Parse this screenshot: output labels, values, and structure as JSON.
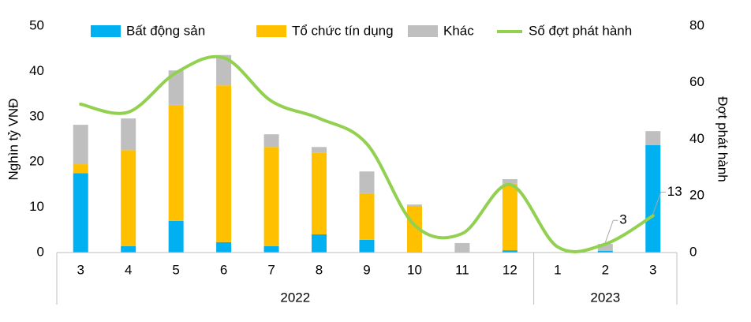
{
  "chart_data": {
    "type": "bar",
    "categories": [
      "3",
      "4",
      "5",
      "6",
      "7",
      "8",
      "9",
      "10",
      "11",
      "12",
      "1",
      "2",
      "3"
    ],
    "x_groups": [
      {
        "label": "2022",
        "span": 10
      },
      {
        "label": "2023",
        "span": 3
      }
    ],
    "y_label": "Nghìn tỷ VNĐ",
    "y2_label": "Đợt phát hành",
    "stacked": true,
    "series": [
      {
        "name": "Bất động sản",
        "color": "#00b0f0",
        "values": [
          17.5,
          1.4,
          7.0,
          2.3,
          1.4,
          4.0,
          2.8,
          0,
          0,
          0.5,
          0,
          0.4,
          23.7
        ]
      },
      {
        "name": "Tổ chức tín dụng",
        "color": "#ffc000",
        "values": [
          2.0,
          21.2,
          25.6,
          34.6,
          21.9,
          18.0,
          10.3,
          10.3,
          0,
          14.7,
          0,
          0,
          0
        ]
      },
      {
        "name": "Khác",
        "color": "#bfbfbf",
        "values": [
          8.7,
          7.0,
          7.6,
          6.7,
          2.8,
          1.3,
          4.8,
          0.3,
          2.1,
          1.0,
          0,
          1.5,
          3.1
        ]
      },
      {
        "name": "Số đợt phát hành",
        "color": "#92d050",
        "type": "line",
        "axis": "y2",
        "values": [
          52.4,
          49.6,
          63.5,
          68.8,
          53.5,
          47.4,
          38.4,
          9.7,
          6.7,
          24.0,
          2.0,
          3,
          13
        ],
        "value_labels": [
          null,
          null,
          null,
          null,
          null,
          null,
          null,
          null,
          null,
          null,
          null,
          "3",
          "13"
        ]
      }
    ],
    "ylim": [
      0,
      50
    ],
    "yticks": [
      0,
      10,
      20,
      30,
      40,
      50
    ],
    "y2lim": [
      0,
      80
    ],
    "y2ticks": [
      0,
      20,
      40,
      60,
      80
    ]
  }
}
